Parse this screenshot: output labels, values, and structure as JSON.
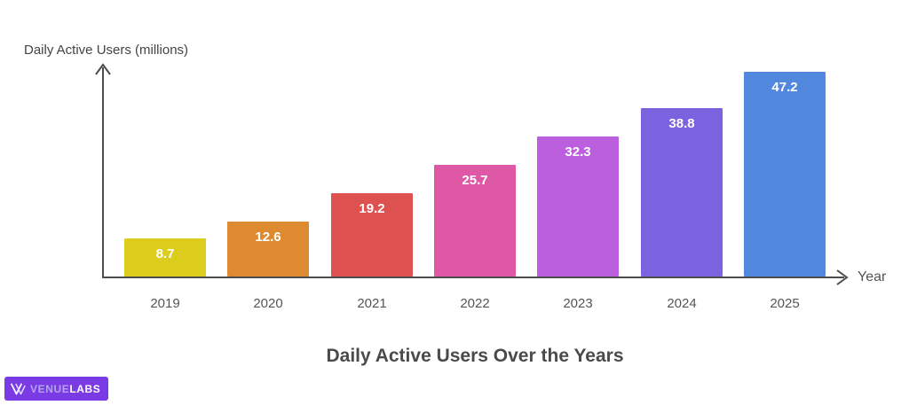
{
  "page": {
    "background": "#ffffff"
  },
  "chart_data": {
    "type": "bar",
    "categories": [
      "2019",
      "2020",
      "2021",
      "2022",
      "2023",
      "2024",
      "2025"
    ],
    "values": [
      8.7,
      12.6,
      19.2,
      25.7,
      32.3,
      38.8,
      47.2
    ],
    "bar_colors": [
      "#dccd1d",
      "#de8a30",
      "#de5151",
      "#de58a6",
      "#bb5fde",
      "#7b63e0",
      "#5287de"
    ],
    "value_label_color": "#ffffff",
    "title": "Daily Active Users Over the Years",
    "ylabel": "Daily Active Users (millions)",
    "xlabel": "Year",
    "ylim": [
      0,
      50
    ],
    "grid": false,
    "legend": "none",
    "axis_color": "#4d4d4d",
    "tick_label_color": "#555555"
  },
  "branding": {
    "logo_icon": "double-v-icon",
    "logo_text_primary": "VENUE",
    "logo_text_secondary": "LABS",
    "badge_bg": "#7b3be4",
    "primary_text_color": "#b5a3f0",
    "secondary_text_color": "#ffffff"
  }
}
